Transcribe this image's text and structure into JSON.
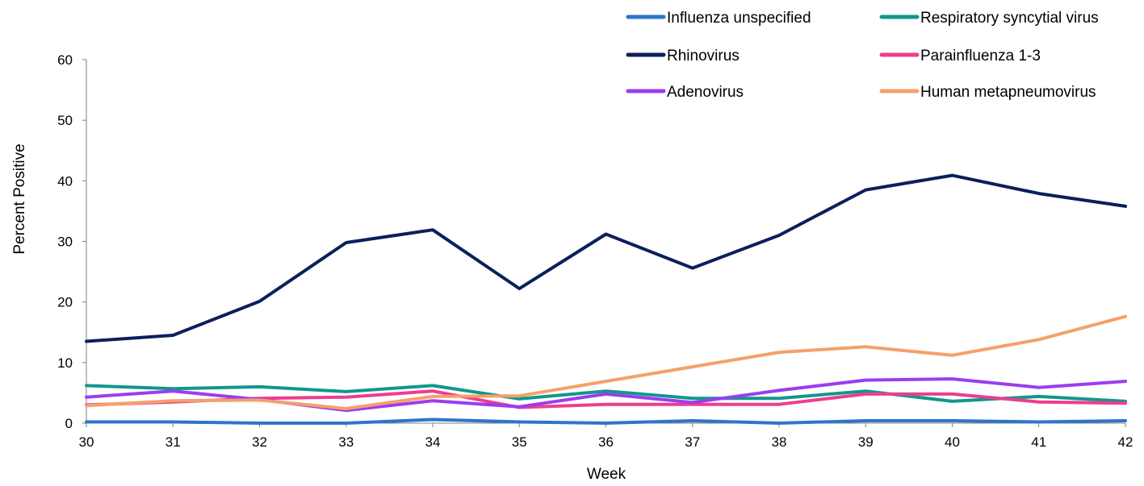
{
  "chart_data": {
    "type": "line",
    "title": "",
    "xlabel": "Week",
    "ylabel": "Percent Positive",
    "x": [
      30,
      31,
      32,
      33,
      34,
      35,
      36,
      37,
      38,
      39,
      40,
      41,
      42
    ],
    "xlim": [
      30,
      42
    ],
    "ylim": [
      0,
      60
    ],
    "yticks": [
      0,
      10,
      20,
      30,
      40,
      50,
      60
    ],
    "grid": false,
    "legend_position": "top-right",
    "series": [
      {
        "name": "Influenza unspecified",
        "color": "#2E75C9",
        "values": [
          0.2,
          0.2,
          0.0,
          0.0,
          0.6,
          0.2,
          0.0,
          0.4,
          0.0,
          0.4,
          0.4,
          0.2,
          0.4
        ]
      },
      {
        "name": "Respiratory syncytial virus",
        "color": "#12978C",
        "values": [
          6.2,
          5.7,
          6.0,
          5.2,
          6.2,
          4.0,
          5.3,
          4.1,
          4.1,
          5.3,
          3.6,
          4.4,
          3.6
        ]
      },
      {
        "name": "Rhinovirus",
        "color": "#0B1F5C",
        "values": [
          13.5,
          14.5,
          20.1,
          29.8,
          31.9,
          22.2,
          31.2,
          25.6,
          31.0,
          38.5,
          40.9,
          37.9,
          35.8
        ]
      },
      {
        "name": "Parainfluenza 1-3",
        "color": "#EE3D8E",
        "values": [
          3.0,
          3.5,
          4.1,
          4.3,
          5.3,
          2.6,
          3.1,
          3.1,
          3.1,
          4.8,
          4.8,
          3.5,
          3.3
        ]
      },
      {
        "name": "Adenovirus",
        "color": "#9B3DF0",
        "values": [
          4.3,
          5.3,
          3.9,
          2.1,
          3.7,
          2.7,
          4.8,
          3.4,
          5.4,
          7.1,
          7.3,
          5.9,
          6.9
        ]
      },
      {
        "name": "Human metapneumovirus",
        "color": "#F5A06A",
        "values": [
          2.9,
          3.7,
          3.8,
          2.4,
          4.4,
          4.5,
          6.9,
          9.3,
          11.7,
          12.6,
          11.2,
          13.8,
          17.6
        ]
      }
    ]
  }
}
